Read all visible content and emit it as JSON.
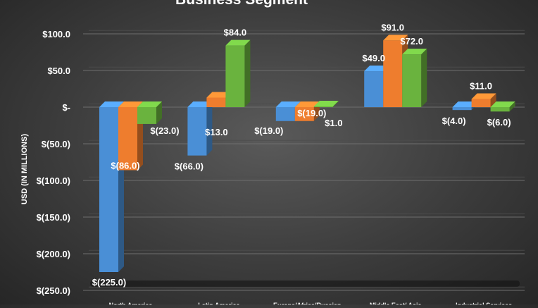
{
  "chart_data": {
    "type": "bar",
    "title": "Business Segment",
    "ylabel": "USD (IN MILLIONS)",
    "xlabel": "",
    "ylim": [
      -250,
      100
    ],
    "yticks": [
      100,
      50,
      0,
      -50,
      -100,
      -150,
      -200,
      -250
    ],
    "ytick_labels": [
      "$100.0",
      "$50.0",
      "$-",
      "$(50.0)",
      "$(100.0)",
      "$(150.0)",
      "$(200.0)",
      "$(250.0)"
    ],
    "categories": [
      "North America",
      "Latin America",
      "Europe/Africa/Russian",
      "Middle East/ Asia",
      "Industrial Services"
    ],
    "grid": true,
    "legend": "none",
    "series": [
      {
        "color": "#4a8fd6",
        "values": [
          -225,
          -66,
          -19,
          49,
          -4
        ],
        "labels": [
          "$(225.0)",
          "$(66.0)",
          "$(19.0)",
          "$49.0",
          "$(4.0)"
        ]
      },
      {
        "color": "#ee7d2e",
        "values": [
          -86,
          13,
          -19,
          91,
          11
        ],
        "labels": [
          "$(86.0)",
          "$13.0",
          "$(19.0)",
          "$91.0",
          "$11.0"
        ]
      },
      {
        "color": "#6ab33e",
        "values": [
          -23,
          84,
          1,
          72,
          -6
        ],
        "labels": [
          "$(23.0)",
          "$84.0",
          "$1.0",
          "$72.0",
          "$(6.0)"
        ]
      }
    ]
  }
}
